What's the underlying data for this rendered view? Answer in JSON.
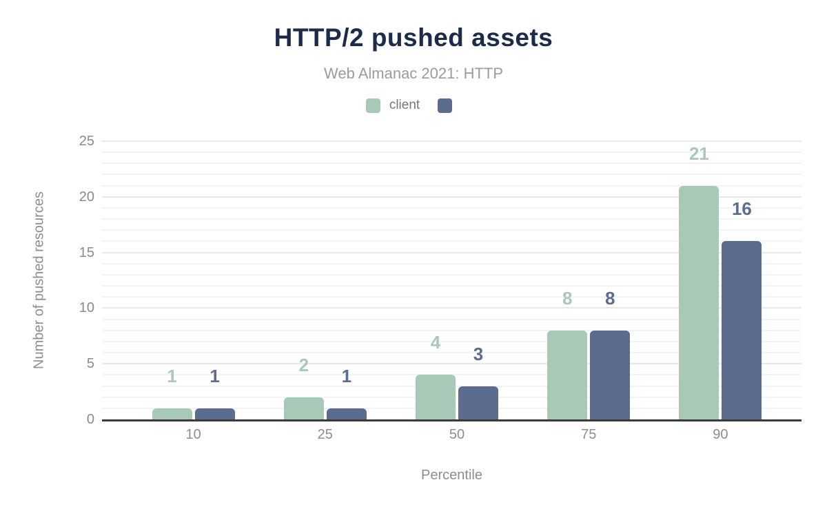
{
  "header": {
    "title": "HTTP/2 pushed assets",
    "subtitle": "Web Almanac 2021: HTTP"
  },
  "legend": {
    "items": [
      {
        "label": "client",
        "color": "#a8c9b6"
      },
      {
        "label": "",
        "color": "#5b6c8e"
      }
    ]
  },
  "axes": {
    "xlabel": "Percentile",
    "ylabel": "Number of pushed resources"
  },
  "colors": {
    "title": "#1c2b4a",
    "subtitle": "#9b9b9b",
    "axis_text": "#8d8d8d",
    "tick_text": "#8a8a8a",
    "legend_text": "#777777",
    "grid_minor": "#f3f3f3",
    "grid_major": "#e8e8e8",
    "baseline": "#3a3a3a",
    "series_client": "#a8c9b6",
    "series_second": "#5b6c8e"
  },
  "chart_data": {
    "type": "bar",
    "title": "HTTP/2 pushed assets",
    "subtitle": "Web Almanac 2021: HTTP",
    "categories": [
      "10",
      "25",
      "50",
      "75",
      "90"
    ],
    "series": [
      {
        "name": "client",
        "color": "#a8c9b6",
        "values": [
          1,
          2,
          4,
          8,
          21
        ]
      },
      {
        "name": "",
        "color": "#5b6c8e",
        "values": [
          1,
          1,
          3,
          8,
          16
        ]
      }
    ],
    "xlabel": "Percentile",
    "ylabel": "Number of pushed resources",
    "ylim": [
      0,
      25
    ],
    "yticks": [
      0,
      5,
      10,
      15,
      20,
      25
    ],
    "grid": "horizontal, minor every 1 unit, major every 5 units",
    "legend_position": "top center",
    "data_labels": "above bars, colored to match series"
  }
}
